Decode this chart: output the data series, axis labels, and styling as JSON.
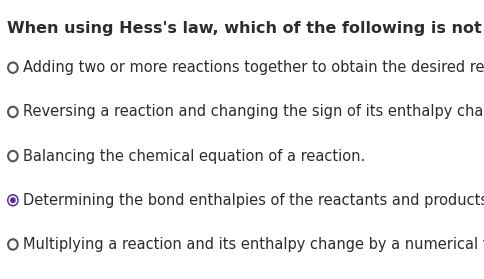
{
  "title": "When using Hess's law, which of the following is not a valid step?",
  "title_fontsize": 11.5,
  "title_color": "#2c2c2c",
  "options": [
    "Adding two or more reactions together to obtain the desired reactio",
    "Reversing a reaction and changing the sign of its enthalpy change.",
    "Balancing the chemical equation of a reaction.",
    "Determining the bond enthalpies of the reactants and products.",
    "Multiplying a reaction and its enthalpy change by a numerical facto"
  ],
  "selected_index": 3,
  "option_fontsize": 10.5,
  "option_color": "#2c2c2c",
  "selected_text_color": "#2c2c2c",
  "circle_color_unselected": "#555555",
  "circle_color_selected_outer": "#5c2d91",
  "circle_color_selected_inner": "#5c2d91",
  "background_color": "#ffffff",
  "figwidth": 4.85,
  "figheight": 2.79,
  "dpi": 100
}
